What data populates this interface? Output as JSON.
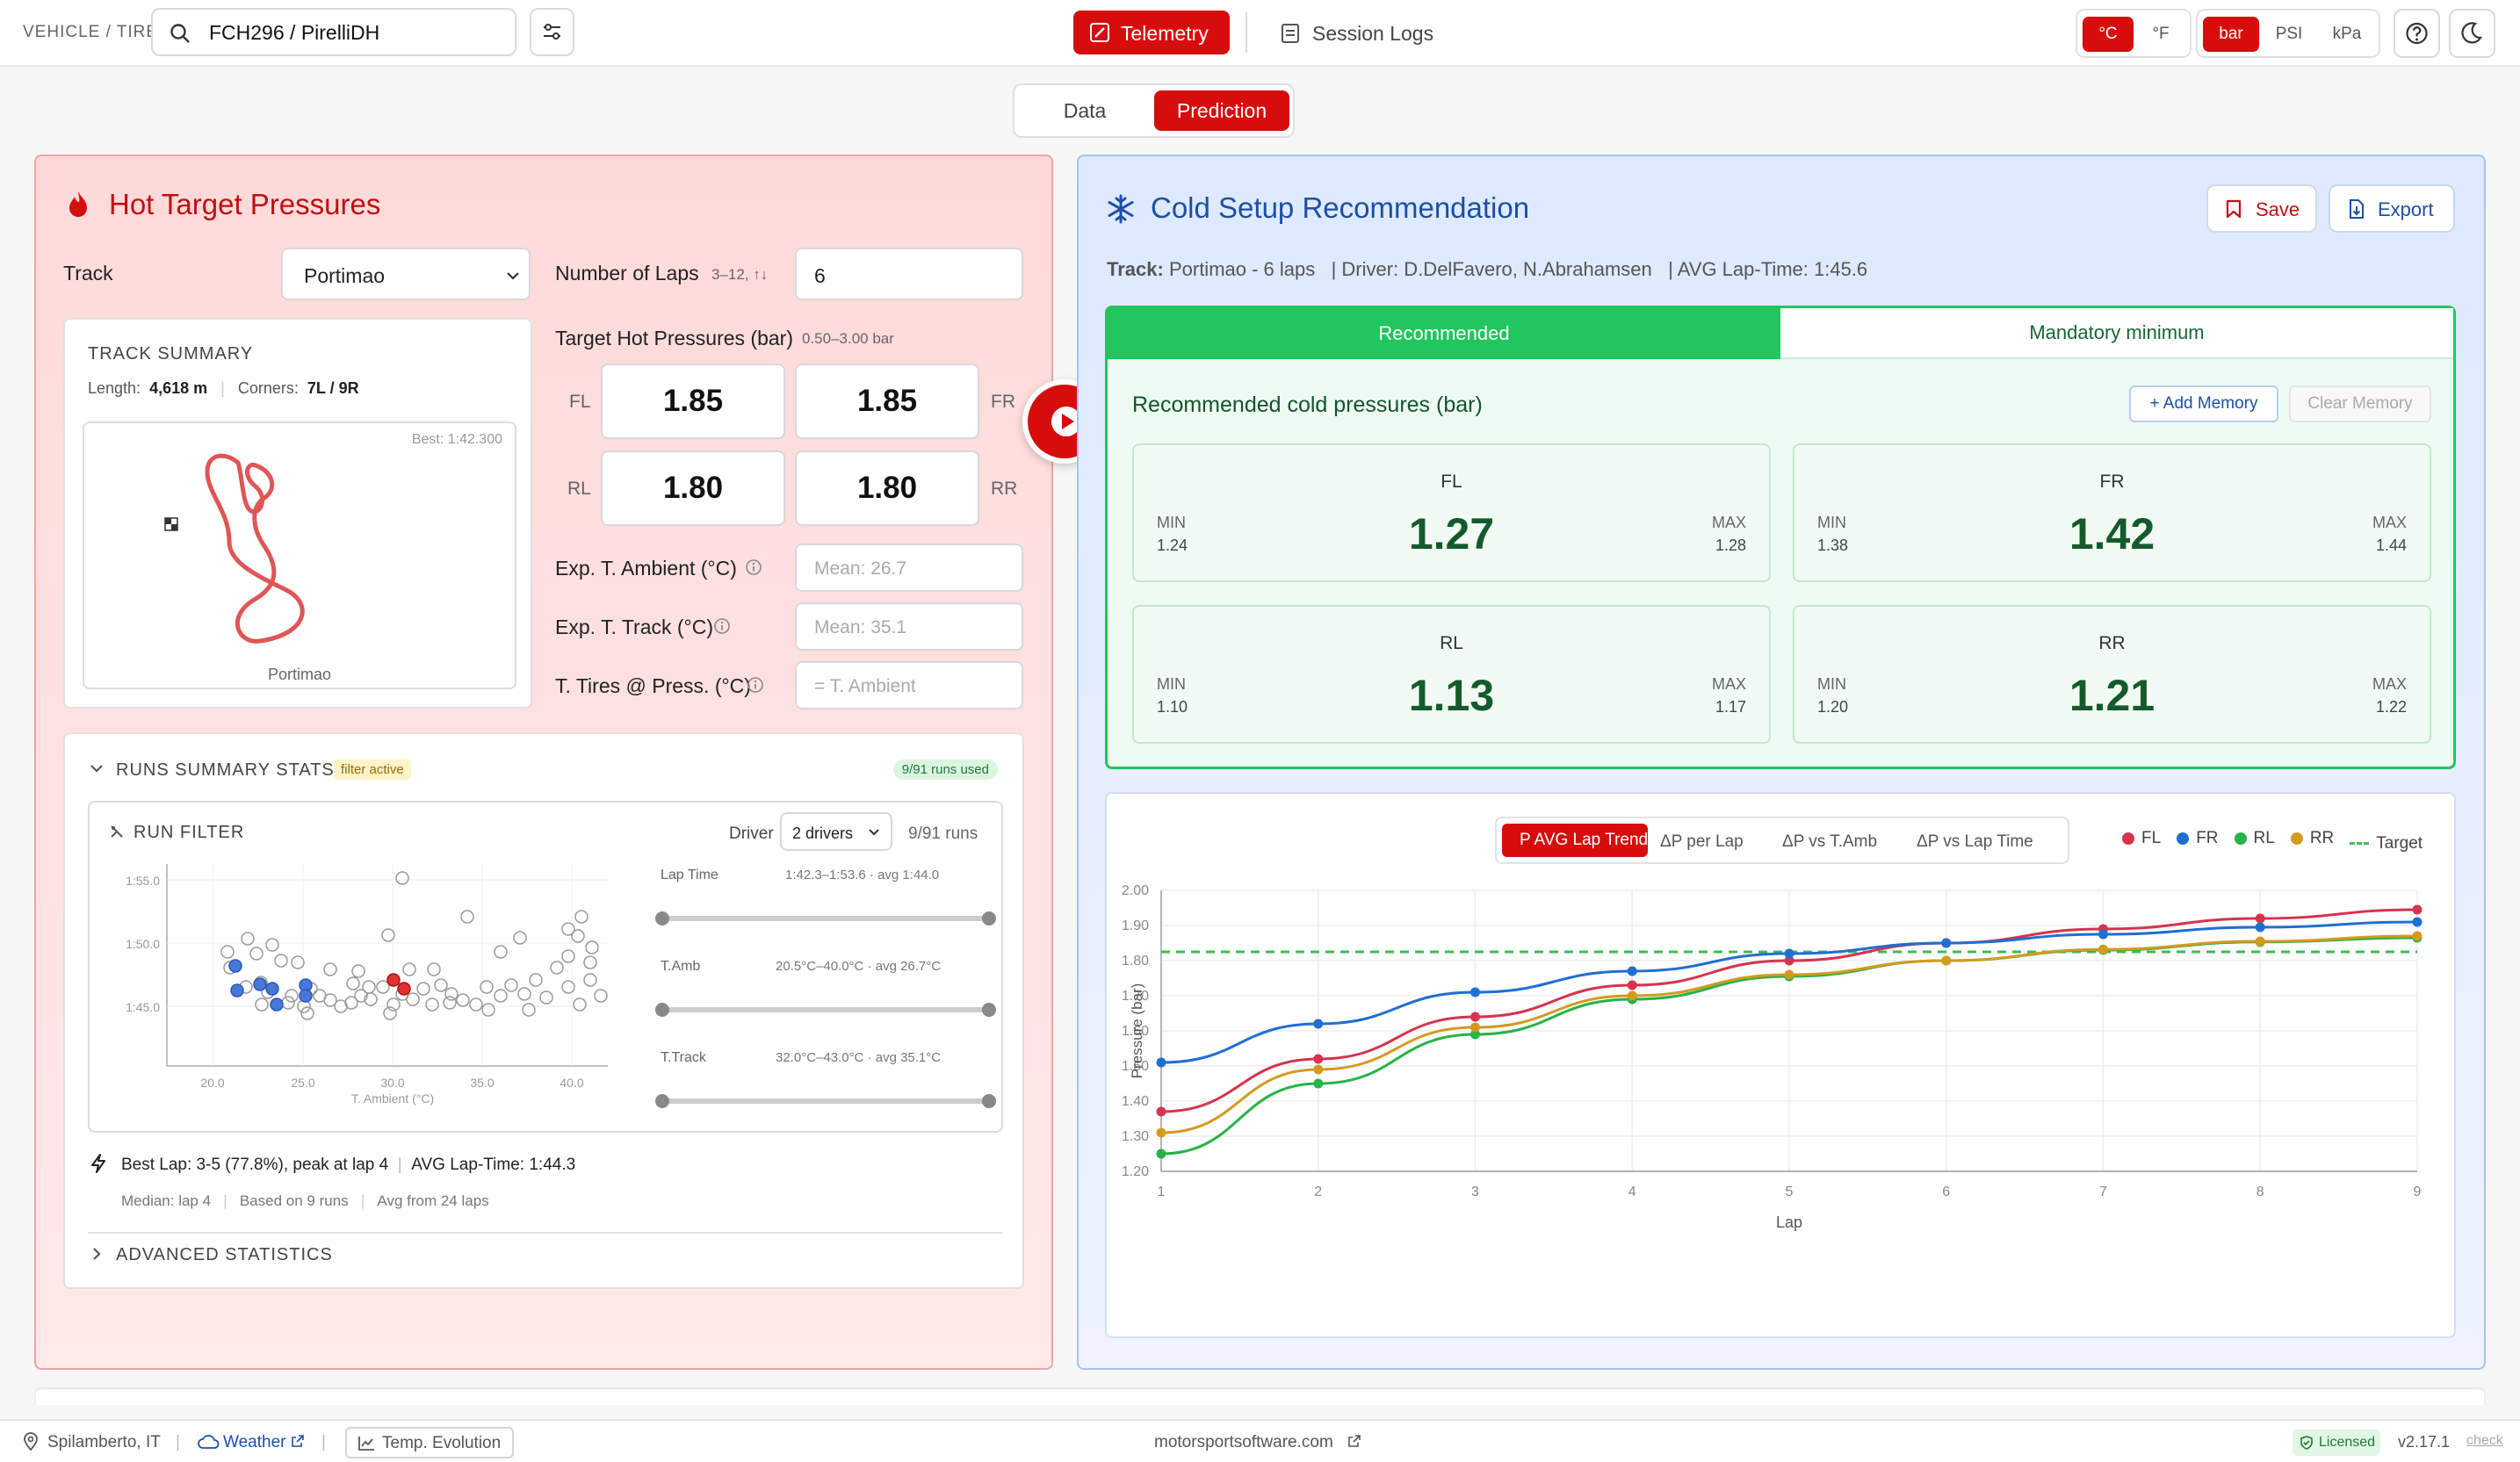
{
  "header": {
    "vehicle_tire_label": "VEHICLE / TIRE",
    "search_value": "FCH296 / PirelliDH",
    "nav_telemetry": "Telemetry",
    "nav_session_logs": "Session Logs",
    "temp_units": [
      "°C",
      "°F"
    ],
    "pressure_units": [
      "bar",
      "PSI",
      "kPa"
    ]
  },
  "view_tabs": [
    "Data",
    "Prediction"
  ],
  "hot": {
    "title": "Hot Target Pressures",
    "track_label": "Track",
    "track_value": "Portimao",
    "laps_label": "Number of Laps",
    "laps_hint": "3–12, ↑↓",
    "laps_value": "6",
    "target_label": "Target Hot Pressures (bar)",
    "target_range": "0.50–3.00 bar",
    "corners": {
      "fl": "FL",
      "fr": "FR",
      "rl": "RL",
      "rr": "RR"
    },
    "pressures": {
      "fl": "1.85",
      "fr": "1.85",
      "rl": "1.80",
      "rr": "1.80"
    },
    "ambient_label": "Exp. T. Ambient (°C)",
    "ambient_placeholder": "Mean: 26.7",
    "tracktemp_label": "Exp. T. Track (°C)",
    "tracktemp_placeholder": "Mean: 35.1",
    "tirestemp_label": "T. Tires @ Press. (°C)",
    "tirestemp_placeholder": "= T. Ambient"
  },
  "track_summary": {
    "title": "TRACK SUMMARY",
    "length_label": "Length:",
    "length_value": "4,618 m",
    "corners_label": "Corners:",
    "corners_value": "7L / 9R",
    "best": "Best: 1:42.300",
    "map_caption": "Portimao"
  },
  "runs": {
    "title": "RUNS SUMMARY STATS",
    "filter_badge": "filter active",
    "used_badge": "9/91 runs used",
    "filter_title": "RUN FILTER",
    "driver_label": "Driver",
    "driver_value": "2 drivers",
    "runs_count": "9/91 runs",
    "scatter_yticks": [
      "1:55.0",
      "1:50.0",
      "1:45.0"
    ],
    "scatter_xticks": [
      "20.0",
      "25.0",
      "30.0",
      "35.0",
      "40.0"
    ],
    "scatter_xlabel": "T. Ambient (°C)",
    "sliders": [
      {
        "label": "Lap Time",
        "info": "1:42.3–1:53.6 · avg 1:44.0"
      },
      {
        "label": "T.Amb",
        "info": "20.5°C–40.0°C · avg 26.7°C"
      },
      {
        "label": "T.Track",
        "info": "32.0°C–43.0°C · avg 35.1°C"
      }
    ],
    "best_lap": "Best Lap: 3-5 (77.8%), peak at lap 4",
    "avg_lap": "AVG Lap-Time: 1:44.3",
    "median": "Median: lap 4",
    "based_on": "Based on 9 runs",
    "avg_from": "Avg from 24 laps",
    "advanced": "ADVANCED STATISTICS"
  },
  "cold": {
    "title": "Cold Setup Recommendation",
    "save_label": "Save",
    "export_label": "Export",
    "meta_track_label": "Track:",
    "meta_track": "Portimao - 6 laps",
    "meta_driver": "| Driver: D.DelFavero, N.Abrahamsen",
    "meta_avg": "| AVG Lap-Time: 1:45.6",
    "tab_recommended": "Recommended",
    "tab_mandatory": "Mandatory minimum",
    "section_title": "Recommended cold pressures (bar)",
    "add_memory": "+ Add Memory",
    "clear_memory": "Clear Memory",
    "min_label": "MIN",
    "max_label": "MAX",
    "tires": [
      {
        "pos": "FL",
        "value": "1.27",
        "min": "1.24",
        "max": "1.28"
      },
      {
        "pos": "FR",
        "value": "1.42",
        "min": "1.38",
        "max": "1.44"
      },
      {
        "pos": "RL",
        "value": "1.13",
        "min": "1.10",
        "max": "1.17"
      },
      {
        "pos": "RR",
        "value": "1.21",
        "min": "1.20",
        "max": "1.22"
      }
    ]
  },
  "chart_tabs": [
    "P AVG Lap Trend",
    "ΔP per Lap",
    "ΔP vs T.Amb",
    "ΔP vs Lap Time"
  ],
  "chart_data": {
    "type": "line",
    "title": "",
    "xlabel": "Lap",
    "ylabel": "Pressure (bar)",
    "x": [
      1,
      2,
      3,
      4,
      5,
      6,
      7,
      8,
      9
    ],
    "ylim": [
      1.2,
      2.0
    ],
    "yticks": [
      "1.20",
      "1.30",
      "1.40",
      "1.50",
      "1.60",
      "1.70",
      "1.80",
      "1.90",
      "2.00"
    ],
    "legend_position": "top-right",
    "grid": true,
    "series": [
      {
        "name": "FL",
        "color": "#d6334d",
        "values": [
          1.37,
          1.52,
          1.64,
          1.73,
          1.8,
          1.85,
          1.89,
          1.92,
          1.945
        ]
      },
      {
        "name": "FR",
        "color": "#1f6fd1",
        "values": [
          1.51,
          1.62,
          1.71,
          1.77,
          1.82,
          1.85,
          1.875,
          1.895,
          1.91
        ]
      },
      {
        "name": "RL",
        "color": "#27b347",
        "values": [
          1.25,
          1.45,
          1.59,
          1.69,
          1.755,
          1.8,
          1.83,
          1.853,
          1.865
        ]
      },
      {
        "name": "RR",
        "color": "#d49a20",
        "values": [
          1.31,
          1.49,
          1.61,
          1.7,
          1.76,
          1.8,
          1.832,
          1.855,
          1.87
        ]
      }
    ],
    "target": {
      "name": "Target",
      "color": "#3bbd55",
      "value": 1.825
    }
  },
  "footer": {
    "location": "Spilamberto, IT",
    "weather": "Weather",
    "temp_evolution": "Temp. Evolution",
    "website": "motorsportsoftware.com",
    "licensed": "Licensed",
    "version": "v2.17.1",
    "check": "check"
  },
  "colors": {
    "accent": "#d70d0d",
    "green": "#22c55e",
    "blue_title": "#1d4fa8"
  }
}
